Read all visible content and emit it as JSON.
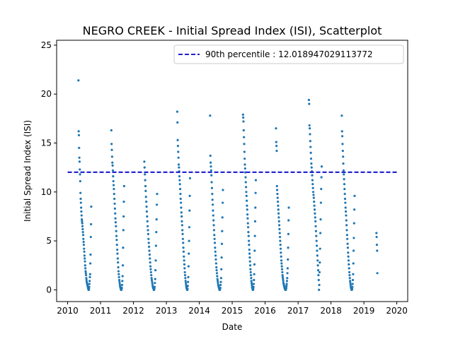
{
  "chart_data": {
    "type": "scatter",
    "title": "NEGRO CREEK - Initial Spread Index (ISI), Scatterplot",
    "xlabel": "Date",
    "ylabel": "Initial Spread Index (ISI)",
    "xlim": [
      "2009-09-01",
      "2020-05-01"
    ],
    "ylim": [
      -1.2,
      25.5
    ],
    "x_ticks": [
      "2010",
      "2011",
      "2012",
      "2013",
      "2014",
      "2015",
      "2016",
      "2017",
      "2018",
      "2019",
      "2020"
    ],
    "y_ticks": [
      0,
      5,
      10,
      15,
      20,
      25
    ],
    "grid": false,
    "legend": {
      "position": "top-right",
      "entries": [
        "90th percentile : 12.018947029113772"
      ]
    },
    "percentile_line": {
      "label": "90th percentile : 12.018947029113772",
      "value": 12.018947029113772,
      "x_start": "2010-01-01",
      "x_end": "2020-01-01",
      "color": "#0000cc",
      "style": "dashed"
    },
    "scatter_color": "#1f77b4",
    "season_points": [
      {
        "season_start": "2010-05-01",
        "season_end": "2010-09-20",
        "values": [
          21.4,
          16.2,
          15.8,
          14.5,
          13.5,
          13.1,
          12.3,
          11.8,
          11.1,
          9.9,
          9.3,
          8.9,
          8.4,
          8.0,
          7.6,
          7.2,
          7.0,
          6.8,
          6.5,
          6.2,
          5.9,
          5.6,
          5.2,
          4.9,
          4.6,
          4.2,
          3.9,
          3.5,
          3.2,
          2.9,
          2.5,
          2.2,
          1.9,
          1.7,
          1.5,
          1.2,
          1.0,
          0.8,
          0.7,
          0.6,
          0.5,
          0.4,
          0.3,
          0.2,
          0.1,
          0.0,
          0.0,
          0.1,
          0.3,
          0.6,
          0.9,
          1.3,
          1.6,
          2.7,
          3.6,
          5.4,
          6.7,
          8.5
        ]
      },
      {
        "season_start": "2011-05-01",
        "season_end": "2011-09-20",
        "values": [
          16.3,
          14.9,
          14.3,
          13.6,
          13.0,
          12.7,
          12.2,
          11.6,
          11.1,
          10.7,
          10.3,
          9.8,
          9.3,
          8.8,
          8.3,
          7.8,
          7.3,
          6.9,
          6.5,
          6.0,
          5.5,
          5.1,
          4.6,
          4.1,
          3.7,
          3.2,
          2.8,
          2.3,
          1.9,
          1.6,
          1.3,
          1.0,
          0.8,
          0.6,
          0.4,
          0.3,
          0.2,
          0.1,
          0.0,
          0.0,
          0.1,
          0.2,
          0.5,
          0.9,
          1.4,
          2.5,
          4.3,
          6.1,
          7.5,
          9.0,
          10.6
        ]
      },
      {
        "season_start": "2012-05-01",
        "season_end": "2012-09-20",
        "values": [
          13.1,
          12.5,
          11.8,
          11.2,
          10.6,
          10.1,
          9.5,
          9.0,
          8.5,
          8.0,
          7.5,
          7.0,
          6.5,
          6.1,
          5.7,
          5.2,
          4.8,
          4.4,
          4.0,
          3.6,
          3.2,
          2.8,
          2.4,
          2.1,
          1.8,
          1.5,
          1.2,
          1.0,
          0.8,
          0.6,
          0.4,
          0.3,
          0.2,
          0.1,
          0.0,
          0.0,
          0.1,
          0.3,
          0.7,
          1.1,
          2.0,
          3.0,
          4.5,
          5.9,
          7.2,
          8.7,
          9.8
        ]
      },
      {
        "season_start": "2013-05-01",
        "season_end": "2013-09-20",
        "values": [
          18.2,
          17.1,
          15.3,
          14.7,
          14.1,
          13.5,
          12.8,
          12.5,
          12.1,
          11.6,
          11.2,
          10.8,
          10.3,
          9.8,
          9.3,
          8.9,
          8.4,
          7.9,
          7.5,
          7.0,
          6.6,
          6.1,
          5.7,
          5.2,
          4.8,
          4.3,
          3.9,
          3.4,
          3.0,
          2.6,
          2.2,
          1.8,
          1.5,
          1.2,
          0.9,
          0.7,
          0.5,
          0.3,
          0.2,
          0.1,
          0.0,
          0.0,
          0.1,
          0.4,
          0.8,
          1.3,
          2.4,
          3.7,
          5.0,
          6.4,
          8.1,
          9.6,
          11.4
        ]
      },
      {
        "season_start": "2014-05-01",
        "season_end": "2014-09-20",
        "values": [
          17.8,
          13.7,
          13.0,
          12.6,
          12.2,
          11.7,
          11.0,
          10.4,
          9.8,
          9.2,
          8.7,
          8.1,
          7.6,
          7.1,
          6.6,
          6.1,
          5.6,
          5.2,
          4.8,
          4.3,
          3.9,
          3.5,
          3.1,
          2.7,
          2.3,
          2.0,
          1.7,
          1.4,
          1.1,
          0.9,
          0.7,
          0.5,
          0.4,
          0.3,
          0.2,
          0.1,
          0.0,
          0.0,
          0.1,
          0.2,
          0.5,
          0.8,
          1.2,
          2.1,
          3.3,
          4.7,
          6.0,
          7.4,
          8.9,
          10.2
        ]
      },
      {
        "season_start": "2015-05-01",
        "season_end": "2015-09-20",
        "values": [
          17.9,
          17.6,
          17.2,
          16.3,
          15.6,
          14.9,
          14.1,
          13.4,
          12.8,
          12.4,
          12.0,
          11.5,
          11.0,
          10.5,
          10.0,
          9.6,
          9.1,
          8.6,
          8.2,
          7.7,
          7.3,
          6.8,
          6.4,
          5.9,
          5.5,
          5.0,
          4.6,
          4.1,
          3.7,
          3.3,
          2.9,
          2.5,
          2.1,
          1.8,
          1.5,
          1.2,
          0.9,
          0.7,
          0.5,
          0.3,
          0.2,
          0.1,
          0.0,
          0.0,
          0.1,
          0.3,
          0.6,
          1.0,
          1.6,
          2.6,
          4.0,
          5.5,
          7.0,
          8.4,
          9.9,
          11.2
        ]
      },
      {
        "season_start": "2016-05-01",
        "season_end": "2016-09-20",
        "values": [
          16.5,
          15.1,
          14.7,
          14.2,
          10.6,
          10.2,
          9.8,
          9.4,
          9.0,
          8.6,
          8.2,
          7.8,
          7.4,
          7.0,
          6.6,
          6.2,
          5.8,
          5.4,
          5.0,
          4.6,
          4.2,
          3.8,
          3.4,
          3.0,
          2.7,
          2.4,
          2.1,
          1.8,
          1.5,
          1.3,
          1.1,
          0.9,
          0.7,
          0.6,
          0.5,
          0.4,
          0.3,
          0.2,
          0.1,
          0.1,
          0.0,
          0.0,
          0.0,
          0.1,
          0.2,
          0.4,
          0.6,
          0.9,
          1.2,
          1.7,
          2.2,
          3.1,
          4.3,
          5.7,
          7.1,
          8.4
        ]
      },
      {
        "season_start": "2017-05-01",
        "season_end": "2017-09-20",
        "values": [
          19.4,
          19.0,
          16.8,
          16.5,
          15.9,
          15.2,
          14.6,
          14.0,
          13.4,
          12.9,
          12.5,
          12.1,
          11.7,
          11.2,
          10.8,
          10.4,
          10.0,
          9.7,
          9.4,
          9.0,
          8.6,
          8.2,
          7.8,
          7.4,
          7.0,
          6.5,
          6.0,
          5.5,
          5.0,
          4.5,
          4.0,
          3.5,
          3.0,
          2.5,
          2.0,
          1.5,
          1.0,
          0.0,
          0.5,
          1.8,
          2.8,
          4.2,
          5.8,
          7.2,
          8.9,
          10.3,
          11.5,
          12.6
        ]
      },
      {
        "season_start": "2018-05-01",
        "season_end": "2018-09-20",
        "values": [
          17.8,
          16.2,
          15.7,
          14.9,
          14.2,
          13.6,
          12.9,
          12.2,
          11.8,
          11.3,
          10.8,
          10.3,
          9.8,
          9.3,
          8.9,
          8.4,
          8.0,
          7.6,
          7.1,
          6.6,
          6.1,
          5.6,
          5.2,
          4.7,
          4.3,
          3.8,
          3.4,
          3.0,
          2.6,
          2.2,
          1.8,
          1.5,
          1.2,
          0.9,
          0.7,
          0.5,
          0.3,
          0.2,
          0.1,
          0.0,
          0.0,
          0.1,
          0.3,
          0.6,
          1.0,
          1.6,
          2.7,
          4.0,
          5.3,
          6.8,
          8.2,
          9.6
        ]
      },
      {
        "season_start": "2019-05-20",
        "season_end": "2019-05-30",
        "values": [
          5.8,
          5.4,
          4.6,
          4.0,
          1.7
        ]
      }
    ]
  }
}
